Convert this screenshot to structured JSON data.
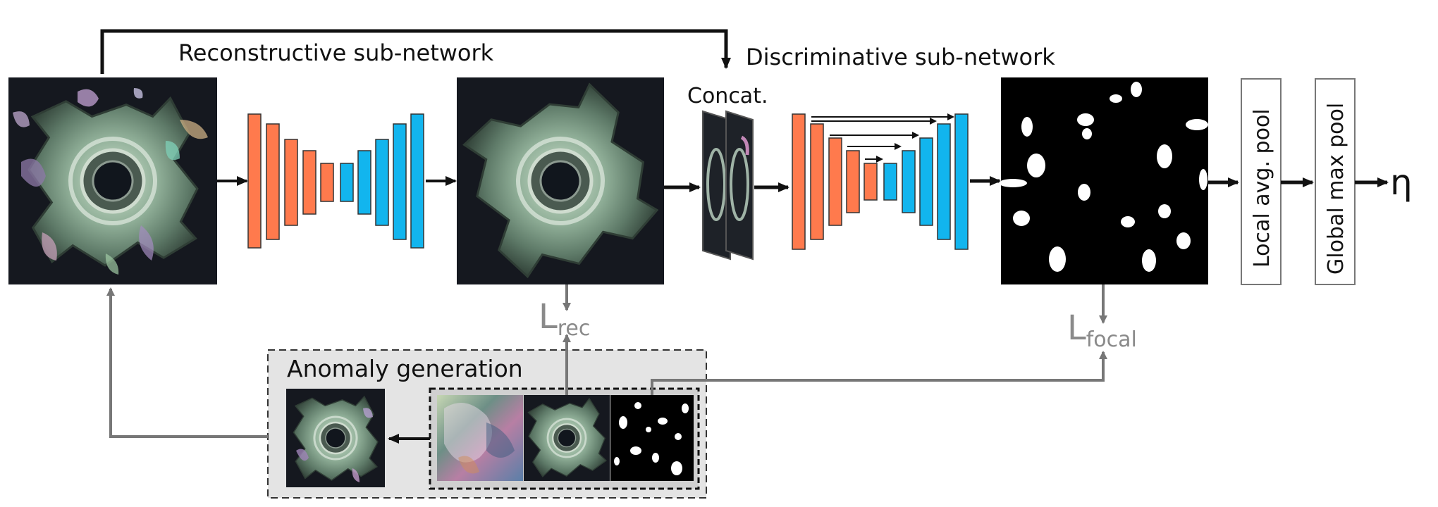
{
  "labels": {
    "reconstructive": "Reconstructive sub-network",
    "discriminative": "Discriminative sub-network",
    "concat": "Concat.",
    "local_pool": "Local avg. pool",
    "global_pool": "Global max pool",
    "output": "η",
    "anomaly_generation": "Anomaly generation",
    "loss_rec_main": "L",
    "loss_rec_sub": "rec",
    "loss_focal_main": "L",
    "loss_focal_sub": "focal"
  },
  "colors": {
    "encoder": "#ff7a4d",
    "decoder": "#12b5ee",
    "arrow": "#111111",
    "loss_arrow": "#777777",
    "anomaly_box": "#e4e4e4"
  }
}
